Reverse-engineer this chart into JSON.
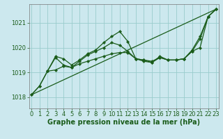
{
  "background_color": "#cce8ee",
  "grid_color": "#99cccc",
  "line_color": "#1a5c1a",
  "marker_color": "#1a5c1a",
  "xlabel": "Graphe pression niveau de la mer (hPa)",
  "xlabel_fontsize": 7,
  "tick_fontsize": 6,
  "yticks": [
    1018,
    1019,
    1020,
    1021
  ],
  "xticks": [
    0,
    1,
    2,
    3,
    4,
    5,
    6,
    7,
    8,
    9,
    10,
    11,
    12,
    13,
    14,
    15,
    16,
    17,
    18,
    19,
    20,
    21,
    22,
    23
  ],
  "xlim": [
    -0.3,
    23.3
  ],
  "ylim": [
    1017.55,
    1021.75
  ],
  "trend_x": [
    0,
    23
  ],
  "trend_y": [
    1018.1,
    1021.55
  ],
  "series1_x": [
    0,
    1,
    2,
    3,
    4,
    5,
    6,
    7,
    8,
    9,
    10,
    11,
    12,
    13,
    14,
    15,
    16,
    17,
    18,
    19,
    20,
    21,
    22,
    23
  ],
  "series1_y": [
    1018.1,
    1018.45,
    1019.05,
    1019.65,
    1019.55,
    1019.3,
    1019.5,
    1019.75,
    1019.9,
    1020.2,
    1020.45,
    1020.65,
    1020.25,
    1019.55,
    1019.5,
    1019.4,
    1019.65,
    1019.5,
    1019.5,
    1019.55,
    1019.9,
    1020.45,
    1021.25,
    1021.55
  ],
  "series2_x": [
    2,
    3,
    4,
    5,
    6,
    7,
    8,
    9,
    10,
    11,
    12,
    13,
    14,
    15,
    16,
    17,
    18,
    19,
    20,
    21,
    22,
    23
  ],
  "series2_y": [
    1019.05,
    1019.6,
    1019.3,
    1019.2,
    1019.45,
    1019.7,
    1019.85,
    1020.0,
    1020.2,
    1020.1,
    1019.85,
    1019.55,
    1019.45,
    1019.4,
    1019.6,
    1019.5,
    1019.5,
    1019.55,
    1019.85,
    1020.35,
    1021.25,
    1021.55
  ],
  "series3_x": [
    0,
    1,
    2,
    3,
    4,
    5,
    6,
    7,
    8,
    9,
    10,
    11,
    12,
    13,
    14,
    15,
    16,
    17,
    18,
    19,
    20,
    21,
    22,
    23
  ],
  "series3_y": [
    1018.1,
    1018.45,
    1019.05,
    1019.1,
    1019.25,
    1019.2,
    1019.35,
    1019.45,
    1019.55,
    1019.65,
    1019.75,
    1019.8,
    1019.8,
    1019.55,
    1019.5,
    1019.45,
    1019.6,
    1019.5,
    1019.5,
    1019.55,
    1019.85,
    1020.0,
    1021.25,
    1021.55
  ]
}
